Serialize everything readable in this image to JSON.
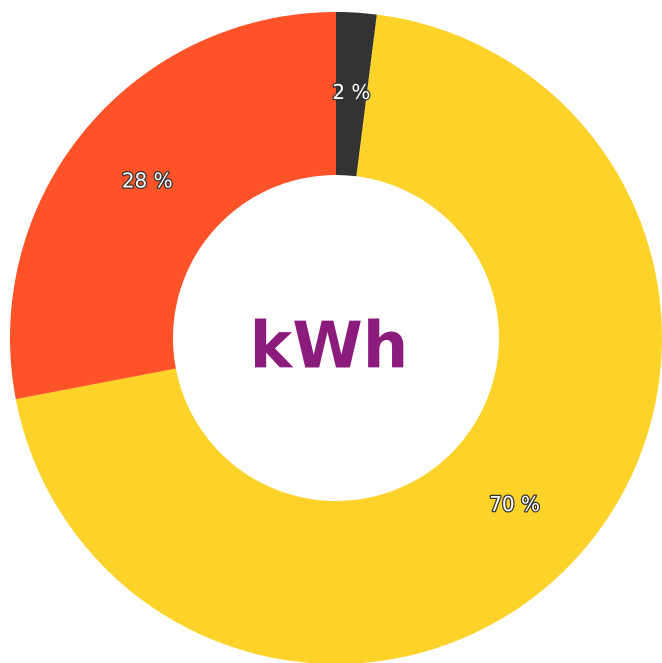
{
  "chart_data": {
    "type": "donut",
    "center_label": "kWh",
    "values": [
      2,
      70,
      28
    ],
    "value_labels": [
      "2 %",
      "70 %",
      "28 %"
    ],
    "colors": [
      "#333333",
      "#fdd32a",
      "#fe5229"
    ]
  }
}
